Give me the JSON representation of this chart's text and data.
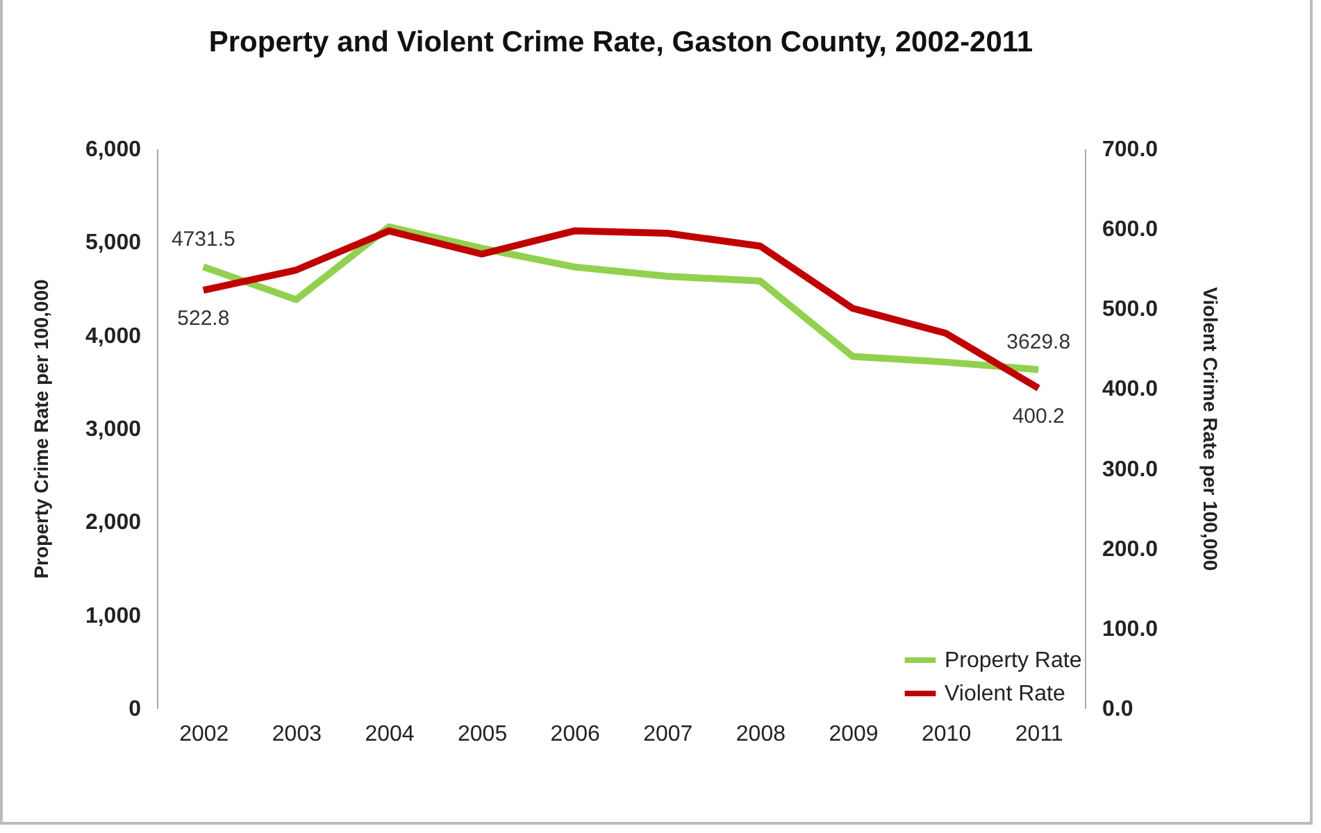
{
  "chart_data": {
    "type": "line",
    "title": "Property and Violent Crime Rate, Gaston County, 2002-2011",
    "ylabel": "Property Crime Rate per 100,000",
    "y2label": "Violent Crime Rate per 100,000",
    "categories": [
      "2002",
      "2003",
      "2004",
      "2005",
      "2006",
      "2007",
      "2008",
      "2009",
      "2010",
      "2011"
    ],
    "series": [
      {
        "name": "Property Rate",
        "color": "#92d050",
        "values": [
          4731.5,
          4380,
          5160,
          4930,
          4730,
          4630,
          4580,
          3770,
          3710,
          3629.8
        ],
        "value_labels": [
          "4731.5",
          null,
          null,
          null,
          null,
          null,
          null,
          null,
          null,
          "3629.8"
        ]
      },
      {
        "name": "Violent Rate",
        "color": "#c00000",
        "axis": "y2",
        "values": [
          522.8,
          548,
          597,
          568,
          597,
          594,
          578,
          500,
          469,
          400.2
        ],
        "value_labels": [
          "522.8",
          null,
          null,
          null,
          null,
          null,
          null,
          null,
          null,
          "400.2"
        ]
      }
    ],
    "ylim": [
      0,
      6000
    ],
    "yticks": [
      {
        "value": 0,
        "label": "0"
      },
      {
        "value": 1000,
        "label": "1,000"
      },
      {
        "value": 2000,
        "label": "2,000"
      },
      {
        "value": 3000,
        "label": "3,000"
      },
      {
        "value": 4000,
        "label": "4,000"
      },
      {
        "value": 5000,
        "label": "5,000"
      },
      {
        "value": 6000,
        "label": "6,000"
      }
    ],
    "y2lim": [
      0,
      700
    ],
    "y2ticks": [
      {
        "value": 0,
        "label": "0.0"
      },
      {
        "value": 100,
        "label": "100.0"
      },
      {
        "value": 200,
        "label": "200.0"
      },
      {
        "value": 300,
        "label": "300.0"
      },
      {
        "value": 400,
        "label": "400.0"
      },
      {
        "value": 500,
        "label": "500.0"
      },
      {
        "value": 600,
        "label": "600.0"
      },
      {
        "value": 700,
        "label": "700.0"
      }
    ],
    "legend": "bottom right",
    "grid": false,
    "marker": "none"
  }
}
